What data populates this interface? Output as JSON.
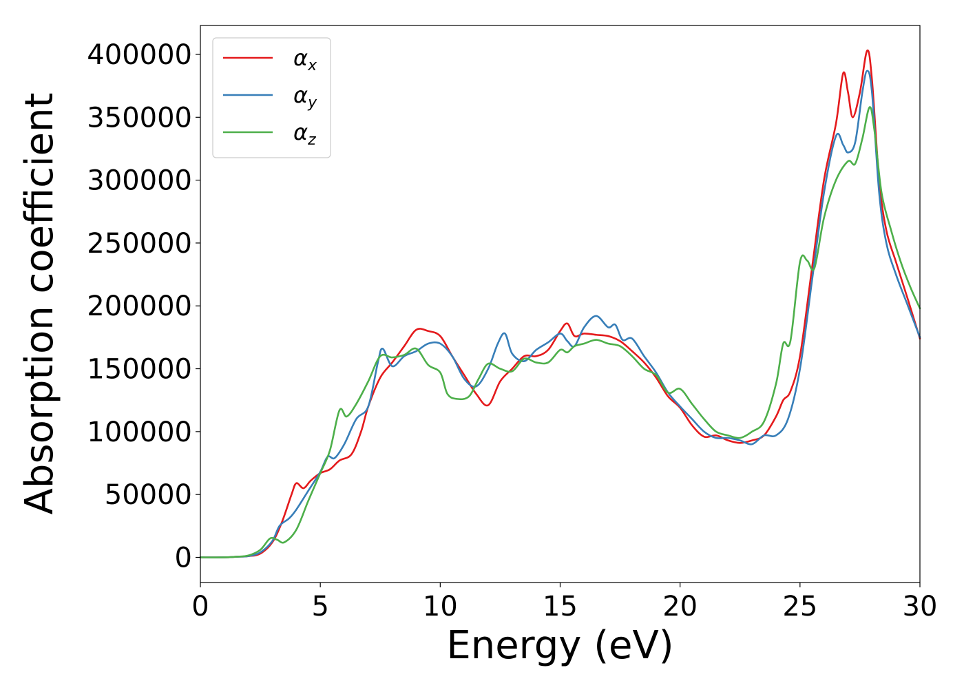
{
  "chart_data": {
    "type": "line",
    "title": "",
    "xlabel": "Energy (eV)",
    "ylabel": "Absorption coefficient",
    "xlim": [
      0,
      30
    ],
    "ylim": [
      -20000,
      423000
    ],
    "xticks": [
      0,
      5,
      10,
      15,
      20,
      25,
      30
    ],
    "yticks": [
      0,
      50000,
      100000,
      150000,
      200000,
      250000,
      300000,
      350000,
      400000
    ],
    "grid": false,
    "legend_position": "top-left",
    "series": [
      {
        "name": "α_x",
        "symbol": "α",
        "subscript": "x",
        "color": "#e41a1c",
        "points": [
          [
            0,
            0
          ],
          [
            1,
            0
          ],
          [
            1.5,
            500
          ],
          [
            2,
            1000
          ],
          [
            2.5,
            3000
          ],
          [
            3,
            12000
          ],
          [
            3.4,
            28000
          ],
          [
            3.8,
            50000
          ],
          [
            4,
            59000
          ],
          [
            4.3,
            55000
          ],
          [
            4.6,
            61000
          ],
          [
            5,
            67000
          ],
          [
            5.4,
            70000
          ],
          [
            5.8,
            77000
          ],
          [
            6.3,
            82000
          ],
          [
            6.7,
            100000
          ],
          [
            7,
            120000
          ],
          [
            7.5,
            143000
          ],
          [
            8,
            155000
          ],
          [
            8.5,
            168000
          ],
          [
            9,
            181000
          ],
          [
            9.5,
            180000
          ],
          [
            10,
            176000
          ],
          [
            10.5,
            160000
          ],
          [
            11,
            145000
          ],
          [
            11.5,
            130000
          ],
          [
            12,
            121000
          ],
          [
            12.5,
            140000
          ],
          [
            13,
            150000
          ],
          [
            13.5,
            160000
          ],
          [
            14,
            160000
          ],
          [
            14.5,
            165000
          ],
          [
            15,
            180000
          ],
          [
            15.3,
            186000
          ],
          [
            15.6,
            176000
          ],
          [
            16,
            178000
          ],
          [
            16.5,
            177000
          ],
          [
            17,
            176000
          ],
          [
            17.5,
            172000
          ],
          [
            18,
            164000
          ],
          [
            18.5,
            155000
          ],
          [
            19,
            143000
          ],
          [
            19.5,
            128000
          ],
          [
            20,
            119000
          ],
          [
            20.5,
            105000
          ],
          [
            21,
            96000
          ],
          [
            21.5,
            97000
          ],
          [
            22,
            93000
          ],
          [
            22.5,
            91000
          ],
          [
            23,
            93000
          ],
          [
            23.5,
            97000
          ],
          [
            24,
            112000
          ],
          [
            24.3,
            125000
          ],
          [
            24.6,
            132000
          ],
          [
            25,
            160000
          ],
          [
            25.5,
            230000
          ],
          [
            26,
            300000
          ],
          [
            26.5,
            345000
          ],
          [
            26.8,
            385000
          ],
          [
            27,
            370000
          ],
          [
            27.2,
            350000
          ],
          [
            27.5,
            370000
          ],
          [
            27.8,
            403000
          ],
          [
            28,
            380000
          ],
          [
            28.3,
            300000
          ],
          [
            28.6,
            260000
          ],
          [
            29,
            235000
          ],
          [
            29.5,
            205000
          ],
          [
            30,
            174000
          ]
        ]
      },
      {
        "name": "α_y",
        "symbol": "α",
        "subscript": "y",
        "color": "#377eb8",
        "points": [
          [
            0,
            0
          ],
          [
            1,
            0
          ],
          [
            1.5,
            500
          ],
          [
            2,
            1000
          ],
          [
            2.5,
            4000
          ],
          [
            3,
            13000
          ],
          [
            3.3,
            25000
          ],
          [
            3.7,
            31000
          ],
          [
            4,
            38000
          ],
          [
            4.5,
            53000
          ],
          [
            5,
            68000
          ],
          [
            5.3,
            80000
          ],
          [
            5.6,
            79000
          ],
          [
            6,
            90000
          ],
          [
            6.5,
            110000
          ],
          [
            7,
            120000
          ],
          [
            7.4,
            155000
          ],
          [
            7.6,
            166000
          ],
          [
            8,
            152000
          ],
          [
            8.5,
            160000
          ],
          [
            9,
            164000
          ],
          [
            9.5,
            170000
          ],
          [
            10,
            170000
          ],
          [
            10.5,
            160000
          ],
          [
            11,
            142000
          ],
          [
            11.5,
            136000
          ],
          [
            12,
            150000
          ],
          [
            12.4,
            170000
          ],
          [
            12.7,
            178000
          ],
          [
            13,
            162000
          ],
          [
            13.5,
            156000
          ],
          [
            14,
            165000
          ],
          [
            14.5,
            171000
          ],
          [
            15,
            178000
          ],
          [
            15.3,
            172000
          ],
          [
            15.6,
            168000
          ],
          [
            16,
            183000
          ],
          [
            16.5,
            192000
          ],
          [
            17,
            183000
          ],
          [
            17.3,
            185000
          ],
          [
            17.6,
            173000
          ],
          [
            18,
            174000
          ],
          [
            18.5,
            160000
          ],
          [
            19,
            147000
          ],
          [
            19.5,
            131000
          ],
          [
            20,
            120000
          ],
          [
            20.5,
            110000
          ],
          [
            21,
            100000
          ],
          [
            21.5,
            95000
          ],
          [
            22,
            95000
          ],
          [
            22.5,
            93000
          ],
          [
            23,
            90000
          ],
          [
            23.5,
            97000
          ],
          [
            24,
            97000
          ],
          [
            24.5,
            110000
          ],
          [
            25,
            150000
          ],
          [
            25.5,
            220000
          ],
          [
            26,
            290000
          ],
          [
            26.5,
            335000
          ],
          [
            26.8,
            328000
          ],
          [
            27,
            322000
          ],
          [
            27.3,
            330000
          ],
          [
            27.6,
            370000
          ],
          [
            27.8,
            387000
          ],
          [
            28,
            370000
          ],
          [
            28.3,
            290000
          ],
          [
            28.6,
            250000
          ],
          [
            29,
            225000
          ],
          [
            29.5,
            200000
          ],
          [
            30,
            175000
          ]
        ]
      },
      {
        "name": "α_z",
        "symbol": "α",
        "subscript": "z",
        "color": "#4daf4a",
        "points": [
          [
            0,
            0
          ],
          [
            1,
            0
          ],
          [
            1.5,
            500
          ],
          [
            2,
            1500
          ],
          [
            2.5,
            6000
          ],
          [
            2.9,
            15000
          ],
          [
            3.2,
            14000
          ],
          [
            3.5,
            12000
          ],
          [
            4,
            22000
          ],
          [
            4.5,
            45000
          ],
          [
            5,
            67000
          ],
          [
            5.4,
            85000
          ],
          [
            5.8,
            117000
          ],
          [
            6.1,
            112000
          ],
          [
            6.5,
            122000
          ],
          [
            7,
            140000
          ],
          [
            7.5,
            160000
          ],
          [
            8,
            159000
          ],
          [
            8.5,
            161000
          ],
          [
            9,
            166000
          ],
          [
            9.5,
            153000
          ],
          [
            10,
            147000
          ],
          [
            10.3,
            130000
          ],
          [
            10.7,
            126000
          ],
          [
            11.2,
            128000
          ],
          [
            11.6,
            142000
          ],
          [
            12,
            154000
          ],
          [
            12.5,
            150000
          ],
          [
            13,
            148000
          ],
          [
            13.5,
            158000
          ],
          [
            14,
            155000
          ],
          [
            14.5,
            155000
          ],
          [
            15,
            165000
          ],
          [
            15.3,
            163000
          ],
          [
            15.6,
            168000
          ],
          [
            16,
            170000
          ],
          [
            16.5,
            173000
          ],
          [
            17,
            170000
          ],
          [
            17.5,
            168000
          ],
          [
            18,
            160000
          ],
          [
            18.5,
            150000
          ],
          [
            19,
            145000
          ],
          [
            19.5,
            131000
          ],
          [
            20,
            134000
          ],
          [
            20.5,
            122000
          ],
          [
            21,
            110000
          ],
          [
            21.5,
            100000
          ],
          [
            22,
            97000
          ],
          [
            22.5,
            95000
          ],
          [
            23,
            100000
          ],
          [
            23.5,
            108000
          ],
          [
            24,
            138000
          ],
          [
            24.3,
            170000
          ],
          [
            24.6,
            172000
          ],
          [
            25,
            235000
          ],
          [
            25.3,
            236000
          ],
          [
            25.6,
            230000
          ],
          [
            26,
            270000
          ],
          [
            26.5,
            300000
          ],
          [
            27,
            315000
          ],
          [
            27.3,
            313000
          ],
          [
            27.6,
            333000
          ],
          [
            27.9,
            358000
          ],
          [
            28.1,
            340000
          ],
          [
            28.4,
            290000
          ],
          [
            28.8,
            260000
          ],
          [
            29.2,
            235000
          ],
          [
            29.6,
            215000
          ],
          [
            30,
            198000
          ]
        ]
      }
    ]
  }
}
